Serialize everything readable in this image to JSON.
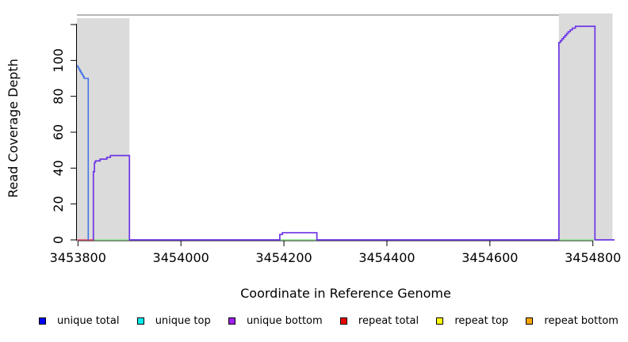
{
  "figure": {
    "xlabel": "Coordinate in Reference Genome",
    "ylabel": "Read Coverage Depth"
  },
  "legend": {
    "items": [
      {
        "label": "unique total",
        "color": "#0000FF"
      },
      {
        "label": "unique top",
        "color": "#00EEEE"
      },
      {
        "label": "unique bottom",
        "color": "#A020F0"
      },
      {
        "label": "repeat total",
        "color": "#EE0000"
      },
      {
        "label": "repeat top",
        "color": "#FFFF00"
      },
      {
        "label": "repeat bottom",
        "color": "#FFA500"
      }
    ]
  },
  "chart_data": {
    "type": "line",
    "title": "",
    "xlabel": "Coordinate in Reference Genome",
    "ylabel": "Read Coverage Depth",
    "x_range": [
      3453798,
      3454842
    ],
    "y_range": [
      0,
      125.3
    ],
    "x_ticks": [
      3453800,
      3454000,
      3454200,
      3454400,
      3454600,
      3454800
    ],
    "x_tick_labels": [
      "3453800",
      "3454000",
      "3454200",
      "3454400",
      "3454600",
      "3454800"
    ],
    "y_ticks": [
      0,
      20,
      40,
      60,
      80,
      100,
      120
    ],
    "y_tick_labels": [
      "0",
      "20",
      "40",
      "60",
      "80",
      "100",
      ""
    ],
    "grid": false,
    "legend_position": "bottom",
    "shaded_regions": [
      {
        "x": [
          3453798,
          3453900
        ],
        "color": "#DBDBDB",
        "covers_top_border": false
      },
      {
        "x": [
          3454734,
          3454838
        ],
        "color": "#DBDBDB",
        "covers_top_border": true
      }
    ],
    "top_border_line": {
      "x": [
        3453798,
        3454838
      ],
      "color": "#8A8A8A"
    },
    "series": [
      {
        "name": "repeat total baseline",
        "color": "#E8566F",
        "width": 1.4,
        "points": [
          [
            3453798,
            0
          ],
          [
            3453832,
            0
          ]
        ]
      },
      {
        "name": "coverage region baseline",
        "color": "#90EE90",
        "width": 1.4,
        "points": [
          [
            3453832,
            0
          ],
          [
            3453900,
            0
          ],
          null,
          [
            3454192,
            0
          ],
          [
            3454264,
            0
          ],
          null,
          [
            3454734,
            0
          ],
          [
            3454804,
            0
          ]
        ]
      },
      {
        "name": "unique bottom",
        "color": "#6D35E5",
        "width": 1.7,
        "points": [
          [
            3453830,
            0
          ],
          [
            3453830,
            38
          ],
          [
            3453832,
            38
          ],
          [
            3453832,
            43
          ],
          [
            3453834,
            43
          ],
          [
            3453834,
            44
          ],
          [
            3453843,
            44
          ],
          [
            3453843,
            45
          ],
          [
            3453856,
            45
          ],
          [
            3453856,
            46
          ],
          [
            3453863,
            46
          ],
          [
            3453863,
            47
          ],
          [
            3453900,
            47
          ],
          [
            3453900,
            0
          ],
          [
            3454192,
            0
          ],
          [
            3454192,
            3
          ],
          [
            3454197,
            3
          ],
          [
            3454197,
            4
          ],
          [
            3454264,
            4
          ],
          [
            3454264,
            0
          ],
          [
            3454734,
            0
          ],
          [
            3454734,
            110
          ],
          [
            3454737,
            110
          ],
          [
            3454737,
            111
          ],
          [
            3454740,
            111
          ],
          [
            3454740,
            112
          ],
          [
            3454743,
            112
          ],
          [
            3454743,
            113
          ],
          [
            3454746,
            113
          ],
          [
            3454746,
            114
          ],
          [
            3454749,
            114
          ],
          [
            3454749,
            115
          ],
          [
            3454752,
            115
          ],
          [
            3454752,
            116
          ],
          [
            3454756,
            116
          ],
          [
            3454756,
            117
          ],
          [
            3454760,
            117
          ],
          [
            3454760,
            118
          ],
          [
            3454766,
            118
          ],
          [
            3454766,
            119
          ],
          [
            3454804,
            119
          ],
          [
            3454804,
            0
          ],
          [
            3454842,
            0
          ]
        ]
      },
      {
        "name": "unique total",
        "color": "#4373E6",
        "width": 1.6,
        "points": [
          [
            3453798,
            97
          ],
          [
            3453800,
            97
          ],
          [
            3453800,
            96
          ],
          [
            3453802,
            96
          ],
          [
            3453802,
            95
          ],
          [
            3453804,
            95
          ],
          [
            3453804,
            94
          ],
          [
            3453806,
            94
          ],
          [
            3453806,
            93
          ],
          [
            3453808,
            93
          ],
          [
            3453808,
            92
          ],
          [
            3453810,
            92
          ],
          [
            3453810,
            91
          ],
          [
            3453812,
            91
          ],
          [
            3453812,
            90
          ],
          [
            3453820,
            90
          ],
          [
            3453820,
            0
          ]
        ]
      }
    ]
  }
}
